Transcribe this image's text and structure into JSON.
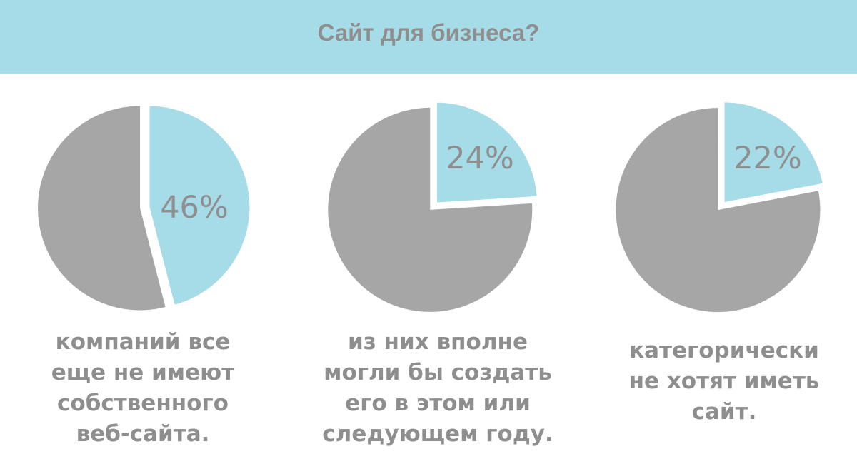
{
  "header": {
    "title": "Сайт для бизнеса?"
  },
  "colors": {
    "header_bg": "#a6dbe8",
    "slice_highlight": "#a6dbe8",
    "slice_rest": "#a6a6a6",
    "text": "#8e8e8e"
  },
  "chart_data": [
    {
      "type": "pie",
      "values": [
        46,
        54
      ],
      "highlight_label": "46%",
      "caption": "компаний все\nеще не имеют\nсобственного\nвеб-сайта."
    },
    {
      "type": "pie",
      "values": [
        24,
        76
      ],
      "highlight_label": "24%",
      "caption": "из них вполне\nмогли бы создать\nего в этом или\nследующем году."
    },
    {
      "type": "pie",
      "values": [
        22,
        78
      ],
      "highlight_label": "22%",
      "caption": "категорически\nне хотят иметь\nсайт."
    }
  ]
}
